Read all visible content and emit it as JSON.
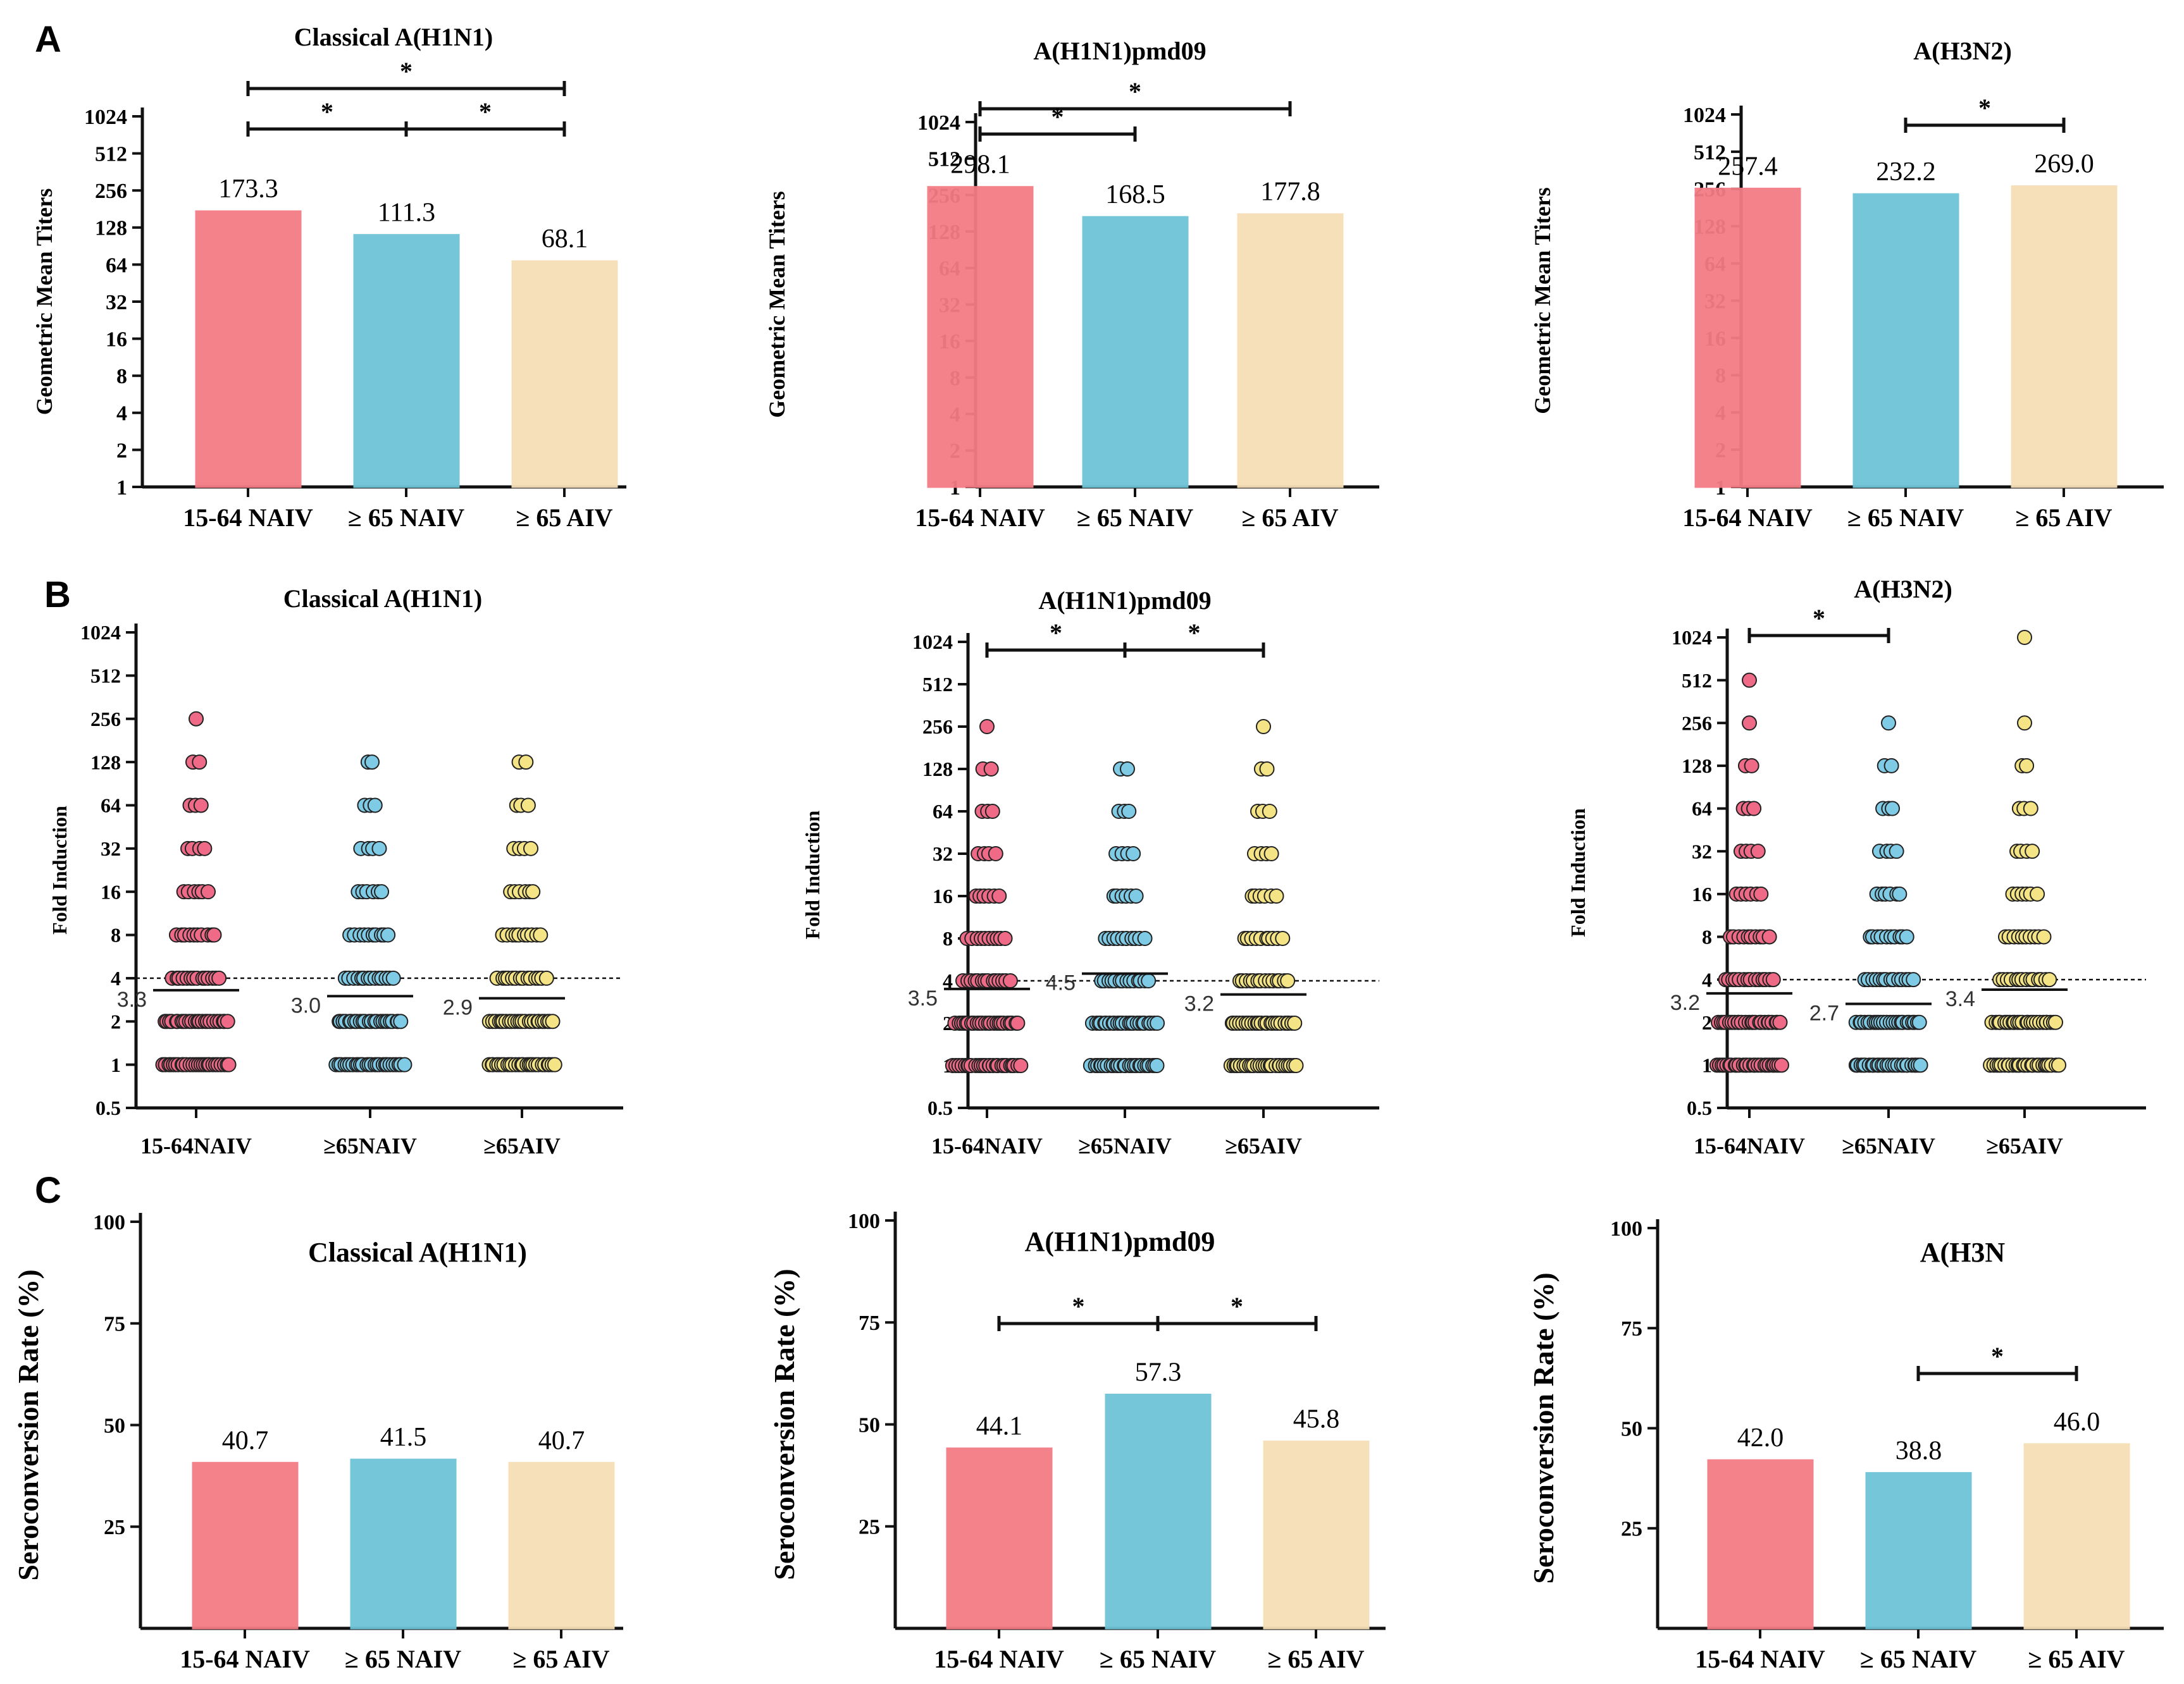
{
  "panel_letters": [
    "A",
    "B",
    "C"
  ],
  "colors": {
    "naiv_young": "#f47c85",
    "naiv_old": "#6fc4d8",
    "aiv_old": "#f5dfb7",
    "dot_young": "#ee6a87",
    "dot_old": "#7fcbe6",
    "dot_aiv": "#f4e486"
  },
  "chart_data": [
    {
      "panel": "A",
      "type": "bar",
      "title": "Classical A(H1N1)",
      "ylabel": "Geometric Mean Titers",
      "yscale": "log2",
      "ylim": [
        1,
        1024
      ],
      "yticks": [
        "1",
        "2",
        "4",
        "8",
        "16",
        "32",
        "64",
        "128",
        "256",
        "512",
        "1024"
      ],
      "categories": [
        "15-64 NAIV",
        "≥ 65 NAIV",
        "≥ 65 AIV"
      ],
      "values": [
        173.3,
        111.3,
        68.1
      ],
      "labels": [
        "173.3",
        "111.3",
        "68.1"
      ],
      "significance": [
        {
          "from": 0,
          "to": 2,
          "label": "*"
        },
        {
          "from": 0,
          "to": 1,
          "label": "*"
        },
        {
          "from": 1,
          "to": 2,
          "label": "*"
        }
      ]
    },
    {
      "panel": "A",
      "type": "bar",
      "title": "A(H1N1)pmd09",
      "ylabel": "Geometric Mean Titers",
      "yscale": "log2",
      "ylim": [
        1,
        1024
      ],
      "yticks": [
        "1",
        "2",
        "4",
        "8",
        "16",
        "32",
        "64",
        "128",
        "256",
        "512",
        "1024"
      ],
      "categories": [
        "15-64 NAIV",
        "≥ 65 NAIV",
        "≥ 65 AIV"
      ],
      "values": [
        298.1,
        168.5,
        177.8
      ],
      "labels": [
        "298.1",
        "168.5",
        "177.8"
      ],
      "significance": [
        {
          "from": 0,
          "to": 2,
          "label": "*"
        },
        {
          "from": 0,
          "to": 1,
          "label": "*"
        }
      ]
    },
    {
      "panel": "A",
      "type": "bar",
      "title": "A(H3N2)",
      "ylabel": "Geometric Mean Titers",
      "yscale": "log2",
      "ylim": [
        1,
        1024
      ],
      "yticks": [
        "1",
        "2",
        "4",
        "8",
        "16",
        "32",
        "64",
        "128",
        "256",
        "512",
        "1024"
      ],
      "categories": [
        "15-64 NAIV",
        "≥ 65 NAIV",
        "≥ 65 AIV"
      ],
      "values": [
        257.4,
        232.2,
        269.0
      ],
      "labels": [
        "257.4",
        "232.2",
        "269.0"
      ],
      "significance": [
        {
          "from": 1,
          "to": 2,
          "label": "*"
        }
      ]
    },
    {
      "panel": "B",
      "type": "scatter",
      "title": "Classical A(H1N1)",
      "ylabel": "Fold Induction",
      "yscale": "log2",
      "ylim": [
        0.5,
        1024
      ],
      "yticks": [
        "0.5",
        "1",
        "2",
        "4",
        "8",
        "16",
        "32",
        "64",
        "128",
        "256",
        "512",
        "1024"
      ],
      "categories": [
        "15-64NAIV",
        "≥65NAIV",
        "≥65AIV"
      ],
      "reference_line": 4,
      "means": [
        3.3,
        3.0,
        2.9
      ],
      "mean_labels": [
        "3.3",
        "3.0",
        "2.9"
      ],
      "levels": [
        [
          256,
          128,
          64,
          32,
          16,
          8,
          4,
          2,
          1
        ],
        [
          128,
          64,
          32,
          16,
          8,
          4,
          2,
          1
        ],
        [
          128,
          64,
          32,
          16,
          8,
          4,
          2,
          1
        ]
      ],
      "significance": []
    },
    {
      "panel": "B",
      "type": "scatter",
      "title": "A(H1N1)pmd09",
      "ylabel": "Fold Induction",
      "yscale": "log2",
      "ylim": [
        0.5,
        1024
      ],
      "yticks": [
        "0.5",
        "1",
        "2",
        "4",
        "8",
        "16",
        "32",
        "64",
        "128",
        "256",
        "512",
        "1024"
      ],
      "categories": [
        "15-64NAIV",
        "≥65NAIV",
        "≥65AIV"
      ],
      "reference_line": 4,
      "means": [
        3.5,
        4.5,
        3.2
      ],
      "mean_labels": [
        "3.5",
        "4.5",
        "3.2"
      ],
      "levels": [
        [
          256,
          128,
          64,
          32,
          16,
          8,
          4,
          2,
          1
        ],
        [
          128,
          64,
          32,
          16,
          8,
          4,
          2,
          1
        ],
        [
          256,
          128,
          64,
          32,
          16,
          8,
          4,
          2,
          1
        ]
      ],
      "significance": [
        {
          "from": 0,
          "to": 1,
          "label": "*"
        },
        {
          "from": 1,
          "to": 2,
          "label": "*"
        }
      ]
    },
    {
      "panel": "B",
      "type": "scatter",
      "title": "A(H3N2)",
      "ylabel": "Fold Induction",
      "yscale": "log2",
      "ylim": [
        0.5,
        1024
      ],
      "yticks": [
        "0.5",
        "1",
        "2",
        "4",
        "8",
        "16",
        "32",
        "64",
        "128",
        "256",
        "512",
        "1024"
      ],
      "categories": [
        "15-64NAIV",
        "≥65NAIV",
        "≥65AIV"
      ],
      "reference_line": 4,
      "means": [
        3.2,
        2.7,
        3.4
      ],
      "mean_labels": [
        "3.2",
        "2.7",
        "3.4"
      ],
      "levels": [
        [
          512,
          256,
          128,
          64,
          32,
          16,
          8,
          4,
          2,
          1
        ],
        [
          256,
          128,
          64,
          32,
          16,
          8,
          4,
          2,
          1
        ],
        [
          1024,
          256,
          128,
          64,
          32,
          16,
          8,
          4,
          2,
          1
        ]
      ],
      "significance": [
        {
          "from": 0,
          "to": 1,
          "label": "*"
        }
      ]
    },
    {
      "panel": "C",
      "type": "bar",
      "title": "Classical A(H1N1)",
      "ylabel": "Seroconversion Rate (%)",
      "yscale": "linear",
      "ylim": [
        0,
        100
      ],
      "yticks": [
        "25",
        "50",
        "75",
        "100"
      ],
      "categories": [
        "15-64 NAIV",
        "≥ 65 NAIV",
        "≥ 65 AIV"
      ],
      "values": [
        40.7,
        41.5,
        40.7
      ],
      "labels": [
        "40.7",
        "41.5",
        "40.7"
      ],
      "significance": []
    },
    {
      "panel": "C",
      "type": "bar",
      "title": "A(H1N1)pmd09",
      "ylabel": "Seroconversion Rate (%)",
      "yscale": "linear",
      "ylim": [
        0,
        100
      ],
      "yticks": [
        "25",
        "50",
        "75",
        "100"
      ],
      "categories": [
        "15-64 NAIV",
        "≥ 65 NAIV",
        "≥ 65 AIV"
      ],
      "values": [
        44.1,
        57.3,
        45.8
      ],
      "labels": [
        "44.1",
        "57.3",
        "45.8"
      ],
      "significance": [
        {
          "from": 0,
          "to": 1,
          "label": "*"
        },
        {
          "from": 1,
          "to": 2,
          "label": "*"
        }
      ]
    },
    {
      "panel": "C",
      "type": "bar",
      "title": "A(H3N",
      "ylabel": "Seroconversion Rate (%)",
      "yscale": "linear",
      "ylim": [
        0,
        100
      ],
      "yticks": [
        "25",
        "50",
        "75",
        "100"
      ],
      "categories": [
        "15-64 NAIV",
        "≥ 65 NAIV",
        "≥ 65 AIV"
      ],
      "values": [
        42.0,
        38.8,
        46.0
      ],
      "labels": [
        "42.0",
        "38.8",
        "46.0"
      ],
      "significance": [
        {
          "from": 1,
          "to": 2,
          "label": "*"
        }
      ]
    }
  ]
}
